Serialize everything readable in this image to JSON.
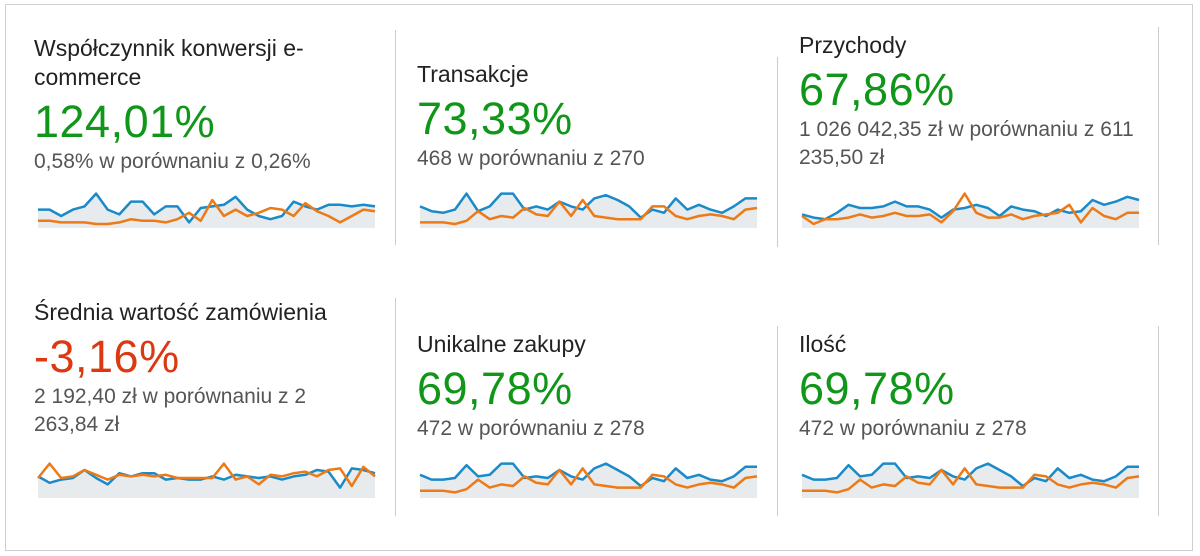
{
  "colors": {
    "current_line": "#1a8ac9",
    "previous_line": "#ec7a17",
    "area_fill": "#e7ebee",
    "positive": "#109618",
    "negative": "#dc3912"
  },
  "metrics": [
    {
      "label": "Współczynnik konwersji e-commerce",
      "change": "124,01%",
      "trend": "positive",
      "comparison": "0,58% w porównaniu z 0,26%",
      "spark_current": [
        0.45,
        0.45,
        0.25,
        0.45,
        0.55,
        0.95,
        0.45,
        0.3,
        0.7,
        0.7,
        0.3,
        0.55,
        0.55,
        0.05,
        0.5,
        0.55,
        0.6,
        0.85,
        0.45,
        0.25,
        0.15,
        0.25,
        0.7,
        0.55,
        0.45,
        0.6,
        0.6,
        0.55,
        0.6,
        0.55
      ],
      "spark_previous": [
        0.1,
        0.1,
        0.05,
        0.05,
        0.05,
        0.0,
        0.0,
        0.05,
        0.15,
        0.1,
        0.1,
        0.05,
        0.15,
        0.35,
        0.1,
        0.75,
        0.25,
        0.45,
        0.25,
        0.35,
        0.5,
        0.45,
        0.25,
        0.65,
        0.4,
        0.25,
        0.05,
        0.25,
        0.45,
        0.4
      ]
    },
    {
      "label": "Transakcje",
      "change": "73,33%",
      "trend": "positive",
      "comparison": "468 w porównaniu z 270",
      "spark_current": [
        0.55,
        0.4,
        0.35,
        0.45,
        0.95,
        0.4,
        0.55,
        0.95,
        0.95,
        0.45,
        0.55,
        0.45,
        0.7,
        0.55,
        0.45,
        0.8,
        0.9,
        0.75,
        0.55,
        0.2,
        0.45,
        0.35,
        0.8,
        0.45,
        0.6,
        0.45,
        0.35,
        0.55,
        0.8,
        0.8
      ],
      "spark_previous": [
        0.05,
        0.05,
        0.05,
        0.0,
        0.1,
        0.4,
        0.15,
        0.25,
        0.2,
        0.5,
        0.3,
        0.25,
        0.7,
        0.25,
        0.75,
        0.25,
        0.2,
        0.15,
        0.15,
        0.15,
        0.55,
        0.55,
        0.25,
        0.15,
        0.25,
        0.3,
        0.25,
        0.15,
        0.45,
        0.5
      ]
    },
    {
      "label": "Przychody",
      "change": "67,86%",
      "trend": "positive",
      "comparison": "1 026 042,35 zł w porównaniu z 611 235,50 zł",
      "spark_current": [
        0.3,
        0.2,
        0.15,
        0.35,
        0.6,
        0.5,
        0.5,
        0.55,
        0.7,
        0.55,
        0.55,
        0.45,
        0.2,
        0.45,
        0.5,
        0.6,
        0.5,
        0.25,
        0.55,
        0.45,
        0.4,
        0.25,
        0.45,
        0.35,
        0.4,
        0.75,
        0.6,
        0.7,
        0.85,
        0.75
      ],
      "spark_previous": [
        0.25,
        0.0,
        0.15,
        0.15,
        0.2,
        0.3,
        0.2,
        0.25,
        0.35,
        0.25,
        0.25,
        0.3,
        0.05,
        0.4,
        0.95,
        0.35,
        0.2,
        0.2,
        0.3,
        0.15,
        0.25,
        0.3,
        0.35,
        0.6,
        0.05,
        0.5,
        0.25,
        0.15,
        0.35,
        0.35
      ]
    },
    {
      "label": "Średnia wartość zamówienia",
      "change": "-3,16%",
      "trend": "negative",
      "comparison": "2 192,40 zł w porównaniu z 2 263,84 zł",
      "spark_current": [
        0.55,
        0.35,
        0.45,
        0.5,
        0.75,
        0.5,
        0.3,
        0.65,
        0.55,
        0.65,
        0.65,
        0.45,
        0.5,
        0.45,
        0.45,
        0.55,
        0.45,
        0.6,
        0.55,
        0.5,
        0.55,
        0.45,
        0.55,
        0.6,
        0.75,
        0.7,
        0.2,
        0.8,
        0.75,
        0.65
      ],
      "spark_previous": [
        0.5,
        0.95,
        0.5,
        0.55,
        0.75,
        0.6,
        0.45,
        0.6,
        0.55,
        0.6,
        0.55,
        0.6,
        0.5,
        0.5,
        0.5,
        0.5,
        0.95,
        0.45,
        0.55,
        0.3,
        0.6,
        0.55,
        0.65,
        0.7,
        0.55,
        0.75,
        0.8,
        0.25,
        0.85,
        0.55
      ]
    },
    {
      "label": "Unikalne zakupy",
      "change": "69,78%",
      "trend": "positive",
      "comparison": "472 w porównaniu z 278",
      "spark_current": [
        0.6,
        0.45,
        0.45,
        0.5,
        0.9,
        0.55,
        0.6,
        0.95,
        0.95,
        0.5,
        0.55,
        0.5,
        0.75,
        0.55,
        0.45,
        0.8,
        0.95,
        0.75,
        0.55,
        0.25,
        0.5,
        0.4,
        0.8,
        0.5,
        0.6,
        0.45,
        0.4,
        0.55,
        0.85,
        0.85
      ],
      "spark_previous": [
        0.1,
        0.1,
        0.1,
        0.05,
        0.15,
        0.45,
        0.2,
        0.3,
        0.25,
        0.55,
        0.35,
        0.3,
        0.75,
        0.3,
        0.8,
        0.3,
        0.25,
        0.2,
        0.2,
        0.2,
        0.6,
        0.55,
        0.3,
        0.2,
        0.3,
        0.35,
        0.3,
        0.2,
        0.5,
        0.55
      ]
    },
    {
      "label": "Ilość",
      "change": "69,78%",
      "trend": "positive",
      "comparison": "472 w porównaniu z 278",
      "spark_current": [
        0.6,
        0.45,
        0.45,
        0.5,
        0.9,
        0.55,
        0.6,
        0.95,
        0.95,
        0.5,
        0.55,
        0.5,
        0.75,
        0.55,
        0.45,
        0.8,
        0.95,
        0.75,
        0.55,
        0.25,
        0.5,
        0.4,
        0.8,
        0.5,
        0.6,
        0.45,
        0.4,
        0.55,
        0.85,
        0.85
      ],
      "spark_previous": [
        0.1,
        0.1,
        0.1,
        0.05,
        0.15,
        0.45,
        0.2,
        0.3,
        0.25,
        0.55,
        0.35,
        0.3,
        0.75,
        0.3,
        0.8,
        0.3,
        0.25,
        0.2,
        0.2,
        0.2,
        0.6,
        0.55,
        0.3,
        0.2,
        0.3,
        0.35,
        0.3,
        0.2,
        0.5,
        0.55
      ]
    }
  ]
}
